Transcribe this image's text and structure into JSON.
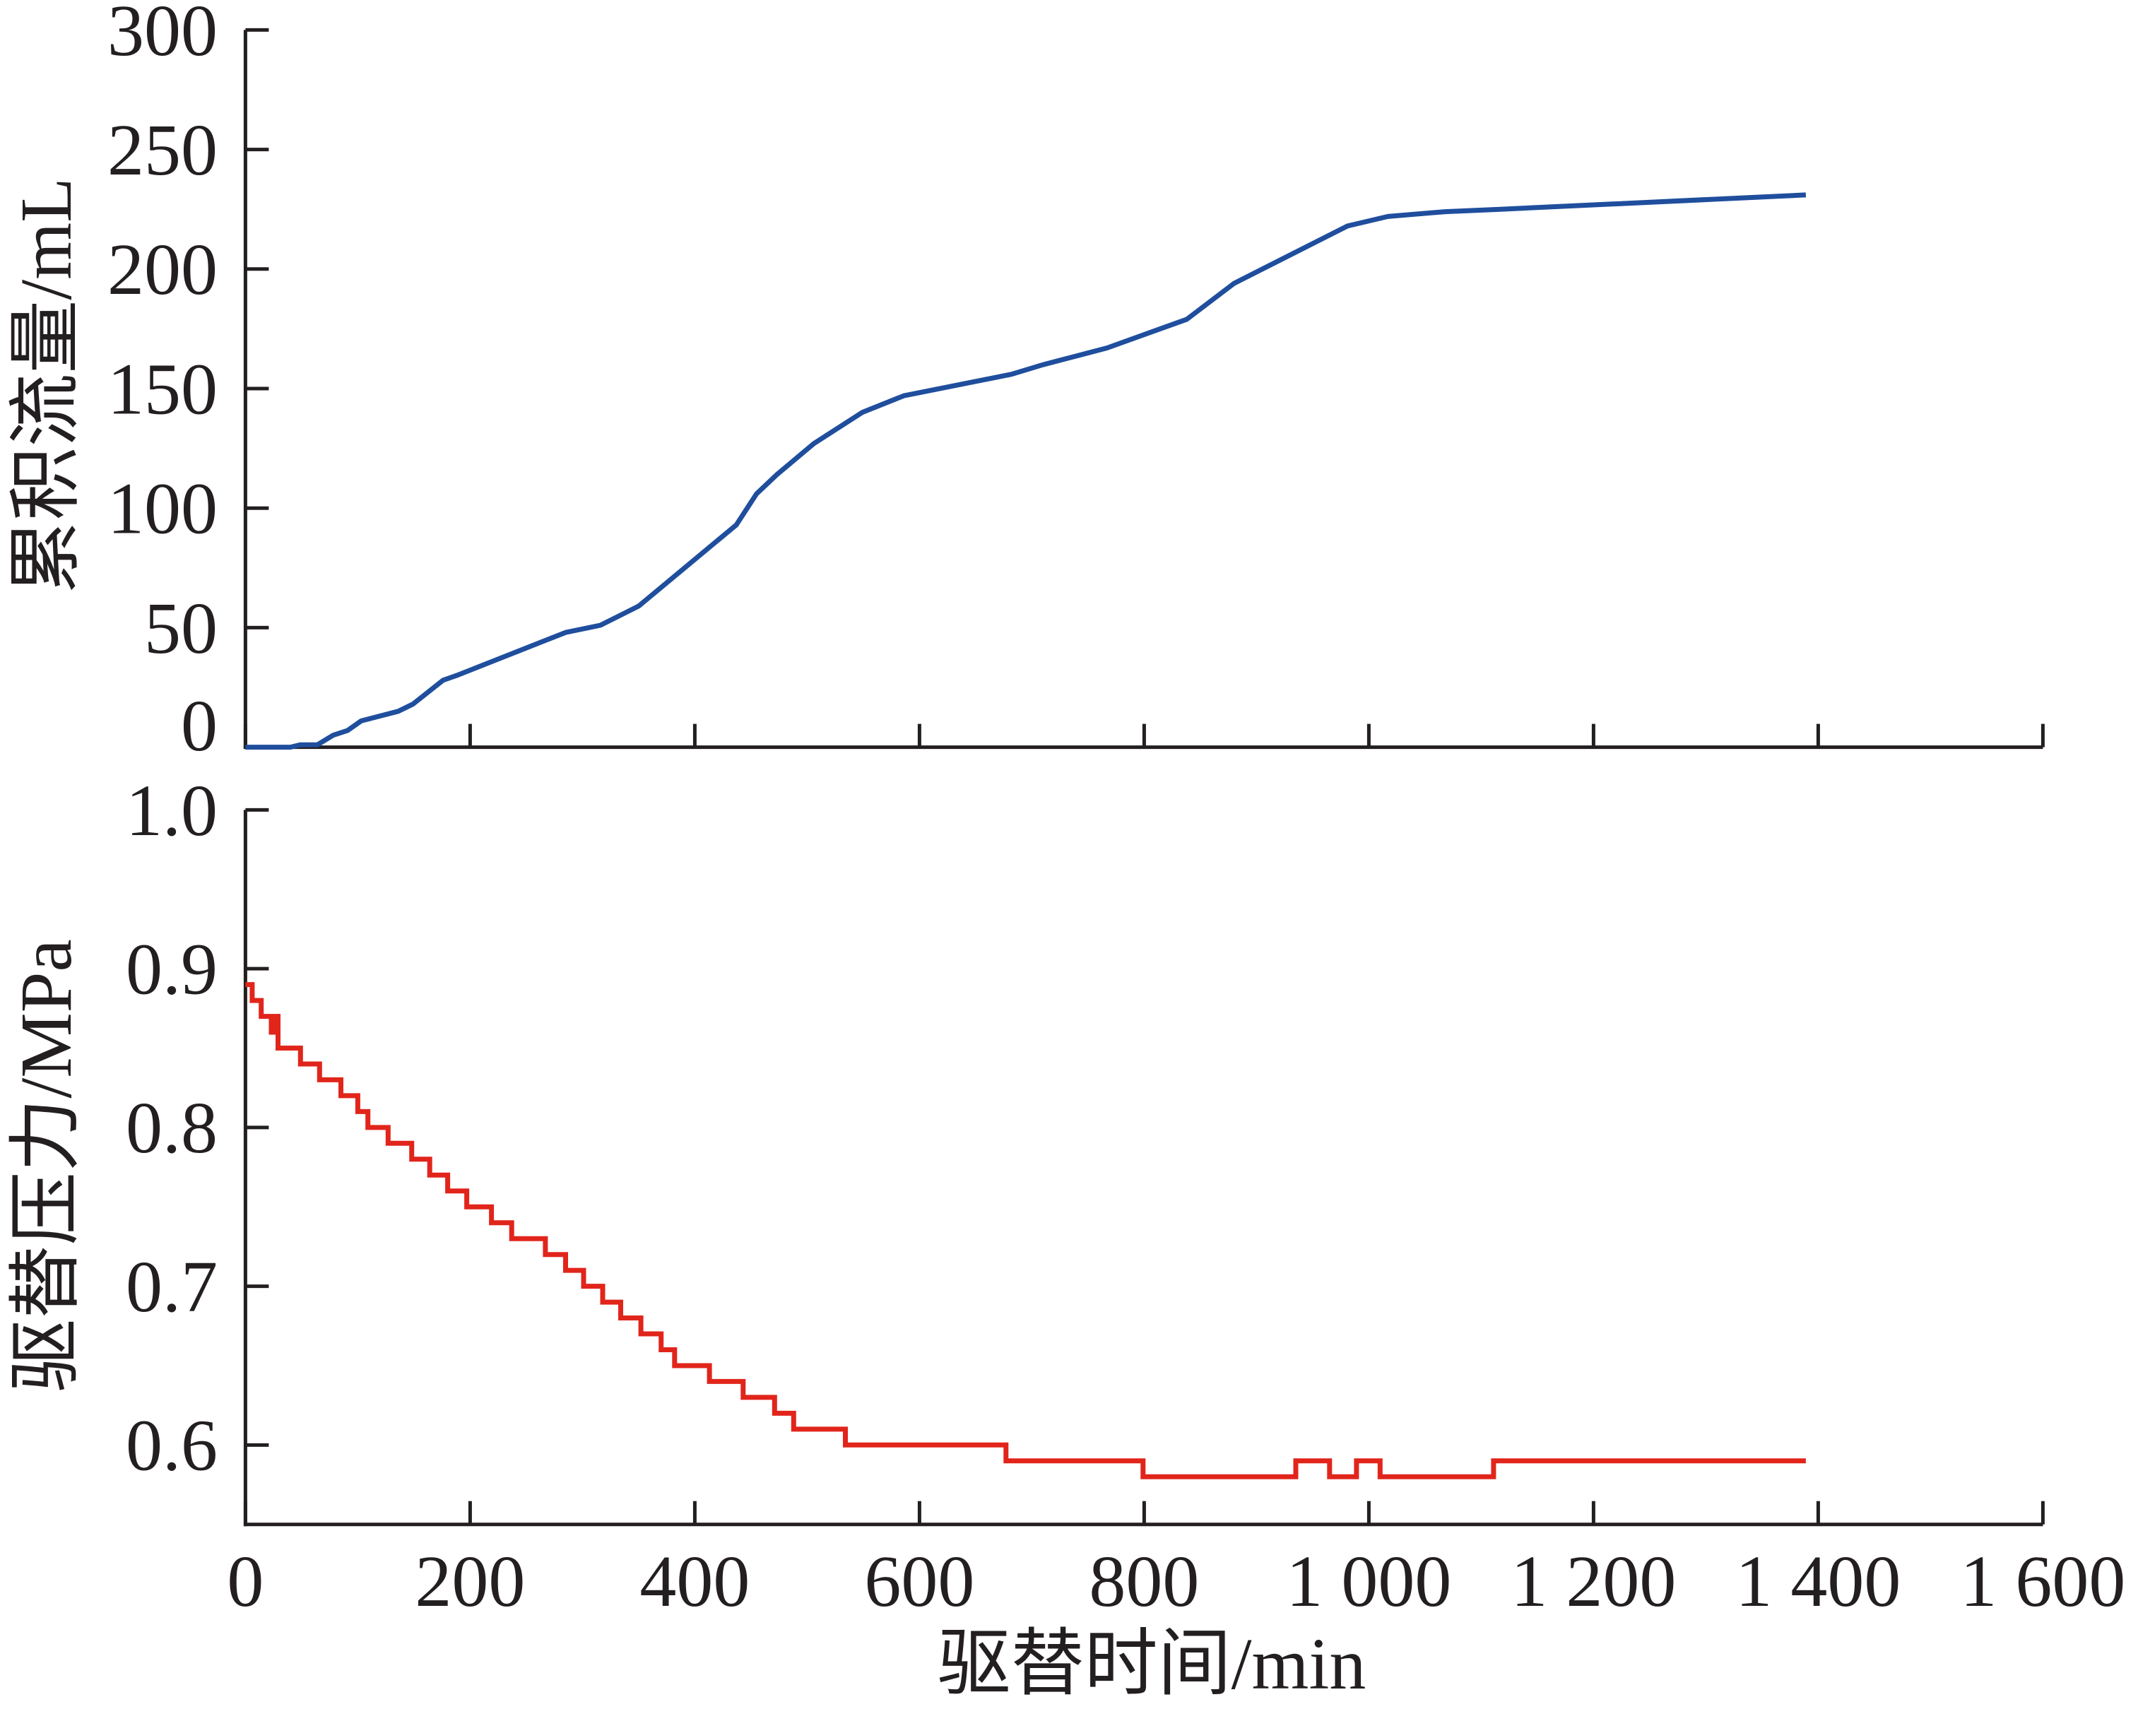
{
  "colors": {
    "axis": "#231f20",
    "background": "#ffffff"
  },
  "chart_data": [
    {
      "type": "line",
      "step": false,
      "grid": false,
      "ylabel": "累积流量/mL",
      "xlim": [
        0,
        1600
      ],
      "ylim": [
        0,
        300
      ],
      "yticks": [
        {
          "value": 0,
          "label": "0"
        },
        {
          "value": 50,
          "label": "50"
        },
        {
          "value": 100,
          "label": "100"
        },
        {
          "value": 150,
          "label": "150"
        },
        {
          "value": 200,
          "label": "200"
        },
        {
          "value": 250,
          "label": "250"
        },
        {
          "value": 300,
          "label": "300"
        }
      ],
      "xticks": [
        {
          "value": 0
        },
        {
          "value": 200
        },
        {
          "value": 400
        },
        {
          "value": 600
        },
        {
          "value": 800
        },
        {
          "value": 1000
        },
        {
          "value": 1200
        },
        {
          "value": 1400
        },
        {
          "value": 1600
        }
      ],
      "series": [
        {
          "color": "#1f4e9d",
          "x": [
            0,
            40,
            49,
            64,
            78,
            91,
            103,
            136,
            149,
            176,
            188,
            285,
            316,
            350,
            437,
            455,
            473,
            506,
            549,
            586,
            682,
            710,
            767,
            838,
            880,
            981,
            1017,
            1068,
            1117,
            1389
          ],
          "y": [
            0,
            0,
            1,
            1,
            5,
            7,
            11,
            15,
            18,
            28,
            30,
            48,
            51,
            59,
            93,
            106,
            114,
            127,
            140,
            147,
            156,
            160,
            167,
            179,
            194,
            218,
            222,
            224,
            225,
            231
          ]
        }
      ]
    },
    {
      "type": "line",
      "step": true,
      "grid": false,
      "ylabel": "驱替压力/MPa",
      "xlabel": "驱替时间/min",
      "xlim": [
        0,
        1600
      ],
      "ylim": [
        0.55,
        1.0
      ],
      "yticks": [
        {
          "value": 0.6,
          "label": "0.6"
        },
        {
          "value": 0.7,
          "label": "0.7"
        },
        {
          "value": 0.8,
          "label": "0.8"
        },
        {
          "value": 0.9,
          "label": "0.9"
        },
        {
          "value": 1.0,
          "label": "1.0"
        }
      ],
      "xticks": [
        {
          "value": 0,
          "label": "0"
        },
        {
          "value": 200,
          "label": "200"
        },
        {
          "value": 400,
          "label": "400"
        },
        {
          "value": 600,
          "label": "600"
        },
        {
          "value": 800,
          "label": "800"
        },
        {
          "value": 1000,
          "label": "1 000"
        },
        {
          "value": 1200,
          "label": "1 200"
        },
        {
          "value": 1400,
          "label": "1 400"
        },
        {
          "value": 1600,
          "label": "1 600"
        }
      ],
      "series": [
        {
          "color": "#e1251b",
          "x": [
            0,
            6,
            14,
            23,
            26,
            29,
            49,
            66,
            85,
            100,
            109,
            127,
            148,
            164,
            180,
            197,
            219,
            237,
            267,
            285,
            301,
            318,
            334,
            352,
            370,
            382,
            413,
            443,
            471,
            488,
            534,
            677,
            799,
            935,
            965,
            989,
            1010,
            1111,
            1389
          ],
          "y": [
            0.89,
            0.88,
            0.87,
            0.86,
            0.87,
            0.85,
            0.84,
            0.83,
            0.82,
            0.81,
            0.8,
            0.79,
            0.78,
            0.77,
            0.76,
            0.75,
            0.74,
            0.73,
            0.72,
            0.71,
            0.7,
            0.69,
            0.68,
            0.67,
            0.66,
            0.65,
            0.64,
            0.63,
            0.62,
            0.61,
            0.6,
            0.59,
            0.58,
            0.59,
            0.58,
            0.59,
            0.58,
            0.59,
            0.59
          ]
        }
      ]
    }
  ]
}
